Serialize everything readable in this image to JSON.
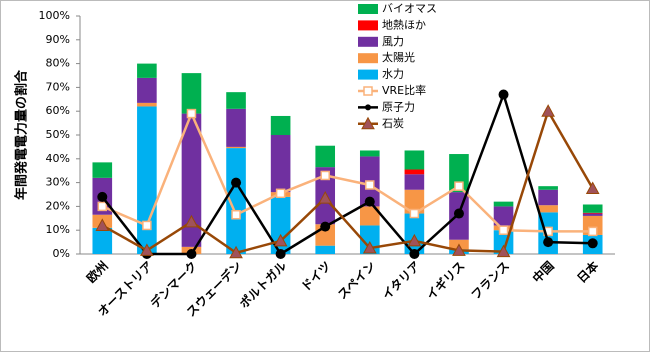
{
  "chart_data": {
    "type": "bar",
    "stacked": true,
    "y_label": "年間発電電力量の割合",
    "categories": [
      "欧州",
      "オーストリア",
      "デンマーク",
      "スウェーデン",
      "ポルトガル",
      "ドイツ",
      "スペイン",
      "イタリア",
      "イギリス",
      "フランス",
      "中国",
      "日本"
    ],
    "series": [
      {
        "name": "水力",
        "type": "bar",
        "color": "#00b0f0",
        "values": [
          11,
          62,
          0,
          44.5,
          24,
          3.5,
          12,
          17,
          2,
          10,
          17.5,
          8
        ]
      },
      {
        "name": "太陽光",
        "type": "bar",
        "color": "#f79646",
        "values": [
          5.5,
          1.5,
          3,
          0.5,
          2,
          9,
          8,
          10,
          4,
          2,
          3,
          8
        ]
      },
      {
        "name": "風力",
        "type": "bar",
        "color": "#7030a0",
        "values": [
          15.5,
          10.5,
          56,
          16,
          24,
          24,
          21,
          6.5,
          20,
          8,
          6.5,
          1
        ]
      },
      {
        "name": "地熱ほか",
        "type": "bar",
        "color": "#ff0000",
        "values": [
          0,
          0,
          0,
          0,
          0,
          0,
          0,
          2,
          0,
          0,
          0,
          0.3
        ]
      },
      {
        "name": "バイオマス",
        "type": "bar",
        "color": "#00b050",
        "values": [
          6.5,
          6,
          17,
          7,
          8,
          9,
          2.5,
          8,
          16,
          2,
          1.5,
          3.5
        ]
      },
      {
        "name": "VRE比率",
        "type": "line",
        "marker": "square",
        "color": "#fab27b",
        "values": [
          20,
          12,
          59,
          16.5,
          25.5,
          33,
          29,
          17,
          28.5,
          10,
          9.5,
          9.5
        ]
      },
      {
        "name": "原子力",
        "type": "line",
        "marker": "circle",
        "color": "#000000",
        "values": [
          24,
          0,
          0,
          30,
          0,
          11.5,
          22,
          0,
          17,
          67,
          5,
          4.5
        ]
      },
      {
        "name": "石炭",
        "type": "line",
        "marker": "triangle",
        "color": "#984807",
        "values": [
          12,
          1.5,
          13.5,
          0.5,
          5.5,
          23.5,
          2.5,
          5.5,
          1.5,
          1,
          60,
          27.5
        ]
      }
    ],
    "ylim": [
      0,
      100
    ],
    "yticks": [
      {
        "value": 0,
        "label": "0%"
      },
      {
        "value": 10,
        "label": "10%"
      },
      {
        "value": 20,
        "label": "20%"
      },
      {
        "value": 30,
        "label": "30%"
      },
      {
        "value": 40,
        "label": "40%"
      },
      {
        "value": 50,
        "label": "50%"
      },
      {
        "value": 60,
        "label": "60%"
      },
      {
        "value": 70,
        "label": "70%"
      },
      {
        "value": 80,
        "label": "80%"
      },
      {
        "value": 90,
        "label": "90%"
      },
      {
        "value": 100,
        "label": "100%"
      }
    ],
    "grid": false
  }
}
